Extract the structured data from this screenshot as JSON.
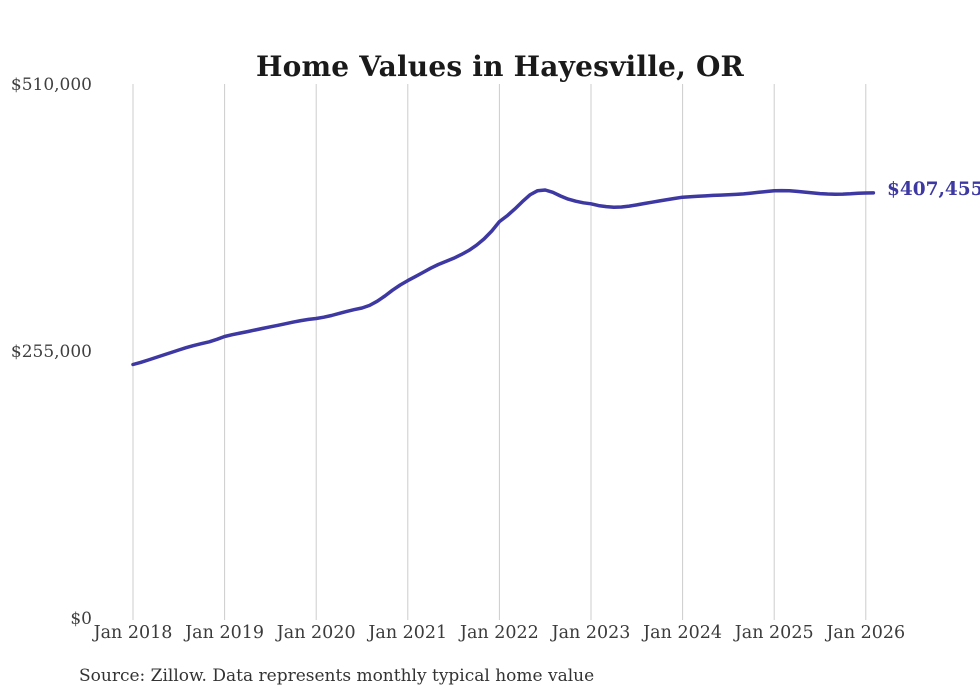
{
  "title": "Home Values in Hayesville, OR",
  "source_note": "Source: Zillow. Data represents monthly typical home value",
  "colors": {
    "line": "#3d38a2",
    "grid": "#cccccc",
    "title_text": "#1a1a1a",
    "axis_text": "#3b3b3b",
    "source_text": "#333333",
    "background": "#ffffff",
    "end_label_text": "#3d38a2"
  },
  "chart_data": {
    "type": "line",
    "title": "Home Values in Hayesville, OR",
    "xlabel": "",
    "ylabel": "",
    "ylim": [
      0,
      510000
    ],
    "grid": "vertical-only",
    "legend": "none",
    "frequency": "monthly",
    "start_month": "2018-01",
    "end_month": "2026-02",
    "latest_value": 407455,
    "latest_value_label": "$407,455",
    "y_ticks": [
      {
        "label": "$0",
        "value": 0
      },
      {
        "label": "$255,000",
        "value": 255000
      },
      {
        "label": "$510,000",
        "value": 510000
      }
    ],
    "x_tick_labels": [
      "Jan 2018",
      "Jan 2019",
      "Jan 2020",
      "Jan 2021",
      "Jan 2022",
      "Jan 2023",
      "Jan 2024",
      "Jan 2025",
      "Jan 2026"
    ],
    "values": [
      243500,
      245500,
      247800,
      250200,
      252600,
      255000,
      257400,
      259700,
      261800,
      263500,
      265200,
      267600,
      270300,
      272000,
      273500,
      275000,
      276500,
      278000,
      279500,
      281000,
      282500,
      284000,
      285500,
      286600,
      287500,
      288700,
      290300,
      292300,
      294300,
      296000,
      297500,
      300000,
      304000,
      309000,
      314500,
      319500,
      323700,
      327500,
      331500,
      335500,
      339000,
      342000,
      345000,
      348500,
      352500,
      357500,
      363500,
      371000,
      380000,
      385500,
      392000,
      399000,
      405500,
      409500,
      410200,
      408000,
      404500,
      401500,
      399500,
      398000,
      397000,
      395300,
      394300,
      393800,
      394000,
      394800,
      396000,
      397300,
      398500,
      399800,
      401000,
      402200,
      403300,
      403700,
      404200,
      404600,
      405000,
      405300,
      405600,
      406000,
      406500,
      407200,
      408000,
      408800,
      409400,
      409600,
      409400,
      408900,
      408200,
      407400,
      406800,
      406400,
      406200,
      406300,
      406600,
      407000,
      407300,
      407455
    ]
  }
}
